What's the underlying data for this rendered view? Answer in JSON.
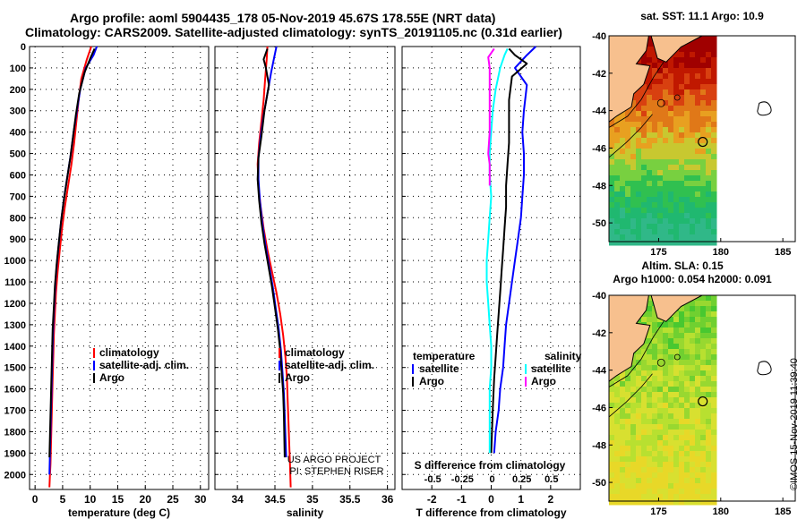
{
  "header": {
    "line1": "Argo profile: aoml 5904435_178 05-Nov-2019 45.67S 178.55E (NRT data)",
    "line2": "Climatology: CARS2009. Satellite-adjusted climatology: synTS_20191105.nc (0.31d earlier)"
  },
  "colors": {
    "climatology": "#ff0000",
    "satellite": "#0000ff",
    "argo": "#000000",
    "salinity_satellite": "#00ffff",
    "salinity_argo": "#ff00ff",
    "land": "#f7c08e"
  },
  "depth_axis": {
    "ticks": [
      "0",
      "100",
      "200",
      "300",
      "400",
      "500",
      "600",
      "700",
      "800",
      "900",
      "1000",
      "1100",
      "1200",
      "1300",
      "1400",
      "1500",
      "1600",
      "1700",
      "1800",
      "1900",
      "2000"
    ]
  },
  "credits": {
    "line1": "US ARGO PROJECT",
    "line2": "PI: STEPHEN RISER",
    "imos": "©IMOS 15-Nov-2019 11:39:40"
  },
  "chart_data": [
    {
      "type": "line",
      "id": "temperature",
      "xlabel": "temperature (deg C)",
      "ylabel": "depth",
      "xlim": [
        -1,
        31.5
      ],
      "ylim": [
        2070,
        0
      ],
      "xticks": [
        0,
        5,
        10,
        15,
        20,
        25,
        30
      ],
      "xtick_labels": [
        "0",
        "5",
        "10",
        "15",
        "20",
        "25",
        "30"
      ],
      "legend": [
        "climatology",
        "satellite-adj. clim.",
        "Argo"
      ],
      "legend_position": "lower-right",
      "series": [
        {
          "name": "climatology",
          "color": "#ff0000",
          "x": [
            10.2,
            9.4,
            8.4,
            7.9,
            7.5,
            7.1,
            6.6,
            6.0,
            5.4,
            4.9,
            4.5,
            4.1,
            3.8,
            3.6,
            3.4,
            3.3,
            3.2,
            3.1,
            3.0,
            2.9,
            2.8,
            2.7,
            2.6
          ],
          "y": [
            0,
            60,
            150,
            250,
            350,
            450,
            550,
            650,
            750,
            850,
            950,
            1050,
            1150,
            1250,
            1350,
            1450,
            1550,
            1650,
            1750,
            1850,
            1950,
            2000,
            2060
          ]
        },
        {
          "name": "satellite-adj. clim.",
          "color": "#0000ff",
          "x": [
            11.2,
            10.6,
            9.2,
            8.2,
            7.6,
            7.0,
            6.5,
            5.9,
            5.3,
            4.8,
            4.4,
            4.0,
            3.7,
            3.5,
            3.3,
            3.2,
            3.1,
            3.0,
            2.9,
            2.8,
            2.7,
            2.6
          ],
          "y": [
            0,
            40,
            100,
            200,
            300,
            400,
            500,
            600,
            700,
            800,
            900,
            1000,
            1100,
            1200,
            1300,
            1400,
            1500,
            1600,
            1700,
            1800,
            1900,
            2000
          ]
        },
        {
          "name": "Argo",
          "color": "#000000",
          "x": [
            10.8,
            10.1,
            9.0,
            8.0,
            7.4,
            6.9,
            6.4,
            5.8,
            5.2,
            4.7,
            4.3,
            3.9,
            3.6,
            3.4,
            3.2,
            3.1,
            3.0,
            2.9,
            2.8,
            2.7,
            2.6
          ],
          "y": [
            10,
            50,
            120,
            220,
            320,
            420,
            520,
            620,
            720,
            820,
            920,
            1020,
            1120,
            1220,
            1320,
            1420,
            1520,
            1620,
            1720,
            1820,
            1920
          ]
        }
      ]
    },
    {
      "type": "line",
      "id": "salinity",
      "xlabel": "salinity",
      "ylabel": "depth",
      "xlim": [
        33.7,
        36.1
      ],
      "ylim": [
        2070,
        0
      ],
      "xticks": [
        34,
        34.5,
        35,
        35.5,
        36
      ],
      "xtick_labels": [
        "34",
        "34.5",
        "35",
        "35.5",
        "36"
      ],
      "legend": [
        "climatology",
        "satellite-adj. clim.",
        "Argo"
      ],
      "legend_position": "lower-right",
      "series": [
        {
          "name": "climatology",
          "color": "#ff0000",
          "x": [
            34.4,
            34.39,
            34.37,
            34.35,
            34.32,
            34.29,
            34.27,
            34.28,
            34.31,
            34.35,
            34.4,
            34.46,
            34.52,
            34.57,
            34.61,
            34.64,
            34.66,
            34.67,
            34.68,
            34.69,
            34.7,
            34.71
          ],
          "y": [
            0,
            60,
            150,
            250,
            350,
            450,
            550,
            650,
            750,
            850,
            950,
            1050,
            1150,
            1250,
            1350,
            1450,
            1550,
            1650,
            1750,
            1850,
            1950,
            2060
          ]
        },
        {
          "name": "satellite-adj. clim.",
          "color": "#0000ff",
          "x": [
            34.52,
            34.49,
            34.45,
            34.4,
            34.35,
            34.31,
            34.28,
            34.28,
            34.3,
            34.33,
            34.37,
            34.42,
            34.47,
            34.51,
            34.55,
            34.58,
            34.6,
            34.62,
            34.63,
            34.64,
            34.65
          ],
          "y": [
            0,
            50,
            120,
            220,
            320,
            420,
            520,
            620,
            720,
            820,
            920,
            1020,
            1120,
            1220,
            1320,
            1420,
            1520,
            1620,
            1720,
            1820,
            1920
          ]
        },
        {
          "name": "Argo",
          "color": "#000000",
          "x": [
            34.4,
            34.35,
            34.38,
            34.42,
            34.36,
            34.32,
            34.28,
            34.27,
            34.29,
            34.32,
            34.36,
            34.41,
            34.46,
            34.5,
            34.54,
            34.57,
            34.59,
            34.61,
            34.62,
            34.63
          ],
          "y": [
            10,
            60,
            100,
            180,
            300,
            420,
            520,
            620,
            720,
            820,
            920,
            1020,
            1120,
            1220,
            1320,
            1420,
            1520,
            1620,
            1720,
            1920
          ]
        }
      ]
    },
    {
      "type": "line",
      "id": "difference",
      "xlabel": "T difference from climatology",
      "xlabel_top": "S difference from climatology",
      "ylabel": "depth",
      "xlim": [
        -3,
        3
      ],
      "ylim": [
        2070,
        0
      ],
      "xticks": [
        -2,
        -1,
        0,
        1,
        2
      ],
      "xtick_labels": [
        "-2",
        "-1",
        "0",
        "1",
        "2"
      ],
      "xticks_salinity": [
        "-0.5",
        "-0.25",
        "0",
        "0.25",
        "0.5"
      ],
      "legend_left_title": "temperature",
      "legend_left": [
        "satellite",
        "Argo"
      ],
      "legend_right_title": "salinity",
      "legend_right": [
        "satellite",
        "Argo"
      ],
      "series": [
        {
          "name": "temperature satellite",
          "color": "#0000ff",
          "x": [
            1.5,
            1.2,
            0.8,
            1.2,
            1.1,
            1.05,
            1.1,
            1.1,
            1.05,
            1.0,
            0.9,
            0.8,
            0.7,
            0.6,
            0.5,
            0.45,
            0.4,
            0.3,
            0.25,
            0.15,
            0.1
          ],
          "y": [
            0,
            40,
            100,
            180,
            300,
            400,
            500,
            600,
            700,
            800,
            900,
            1000,
            1100,
            1200,
            1300,
            1400,
            1500,
            1600,
            1700,
            1800,
            1900
          ]
        },
        {
          "name": "temperature Argo",
          "color": "#000000",
          "x": [
            0.6,
            0.8,
            1.2,
            0.7,
            0.6,
            0.6,
            0.6,
            0.55,
            0.5,
            0.5,
            0.45,
            0.4,
            0.35,
            0.3,
            0.25,
            0.2,
            0.15,
            0.1,
            0.05,
            0.0
          ],
          "y": [
            10,
            40,
            80,
            140,
            250,
            350,
            450,
            550,
            650,
            750,
            850,
            950,
            1050,
            1150,
            1250,
            1350,
            1450,
            1550,
            1700,
            1900
          ]
        },
        {
          "name": "salinity satellite",
          "color": "#00ffff",
          "x": [
            0.55,
            0.45,
            0.3,
            0.15,
            0.05,
            0.0,
            -0.05,
            -0.05,
            0.0,
            -0.05,
            -0.1,
            -0.15,
            -0.15,
            -0.1,
            -0.05,
            0.0,
            0.0,
            -0.05,
            -0.05,
            -0.05
          ],
          "y": [
            10,
            40,
            100,
            200,
            300,
            400,
            500,
            600,
            700,
            800,
            900,
            1000,
            1100,
            1200,
            1300,
            1400,
            1500,
            1600,
            1700,
            1900
          ]
        },
        {
          "name": "salinity Argo",
          "color": "#ff00ff",
          "x": [
            0.1,
            -0.1,
            -0.05,
            -0.05,
            -0.05,
            -0.05,
            -0.1,
            -0.05,
            -0.05,
            -0.05
          ],
          "y": [
            10,
            50,
            100,
            200,
            300,
            400,
            500,
            550,
            600,
            650
          ]
        }
      ]
    },
    {
      "type": "heatmap",
      "id": "sst-map",
      "title": "sat. SST: 11.1  Argo: 10.9",
      "xticks": [
        "175",
        "180",
        "185"
      ],
      "yticks": [
        "-40",
        "-42",
        "-44",
        "-46",
        "-48",
        "-50"
      ],
      "xlim": [
        171,
        186
      ],
      "ylim": [
        -51,
        -40
      ],
      "argo_position": [
        178.55,
        -45.67
      ]
    },
    {
      "type": "heatmap",
      "id": "sla-map",
      "title_line1": "Altim. SLA: 0.15",
      "title_line2": "Argo h1000: 0.054 h2000: 0.091",
      "xticks": [
        "175",
        "180",
        "185"
      ],
      "yticks": [
        "-40",
        "-42",
        "-44",
        "-46",
        "-48",
        "-50"
      ],
      "xlim": [
        171,
        186
      ],
      "ylim": [
        -51,
        -40
      ],
      "argo_position": [
        178.55,
        -45.67
      ]
    }
  ]
}
